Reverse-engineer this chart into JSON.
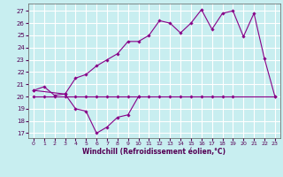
{
  "bg_color": "#c8eef0",
  "grid_color": "#ffffff",
  "line_color": "#880088",
  "xlabel": "Windchill (Refroidissement éolien,°C)",
  "xlim": [
    -0.5,
    23.5
  ],
  "ylim": [
    16.6,
    27.6
  ],
  "yticks": [
    17,
    18,
    19,
    20,
    21,
    22,
    23,
    24,
    25,
    26,
    27
  ],
  "xticks": [
    0,
    1,
    2,
    3,
    4,
    5,
    6,
    7,
    8,
    9,
    10,
    11,
    12,
    13,
    14,
    15,
    16,
    17,
    18,
    19,
    20,
    21,
    22,
    23
  ],
  "series": [
    {
      "x": [
        0,
        1,
        2,
        3,
        4,
        5,
        6,
        7,
        8,
        9,
        10
      ],
      "y": [
        20.5,
        20.8,
        20.1,
        20.2,
        19.0,
        18.8,
        17.0,
        17.5,
        18.3,
        18.5,
        20.0
      ]
    },
    {
      "x": [
        0,
        3,
        4,
        5,
        6,
        7,
        8,
        9,
        10,
        11,
        12,
        13,
        14,
        15,
        16,
        17,
        18,
        19,
        20,
        21,
        22,
        23
      ],
      "y": [
        20.5,
        20.2,
        21.5,
        21.8,
        22.5,
        23.0,
        23.5,
        24.5,
        24.5,
        25.0,
        26.2,
        26.0,
        25.2,
        26.0,
        27.1,
        25.5,
        26.8,
        27.0,
        24.9,
        26.8,
        23.1,
        20.0
      ]
    },
    {
      "x": [
        0,
        1,
        2,
        3,
        4,
        5,
        6,
        7,
        8,
        9,
        10,
        11,
        12,
        13,
        14,
        15,
        16,
        17,
        18,
        19,
        23
      ],
      "y": [
        20.0,
        20.0,
        20.0,
        20.0,
        20.0,
        20.0,
        20.0,
        20.0,
        20.0,
        20.0,
        20.0,
        20.0,
        20.0,
        20.0,
        20.0,
        20.0,
        20.0,
        20.0,
        20.0,
        20.0,
        20.0
      ]
    }
  ]
}
